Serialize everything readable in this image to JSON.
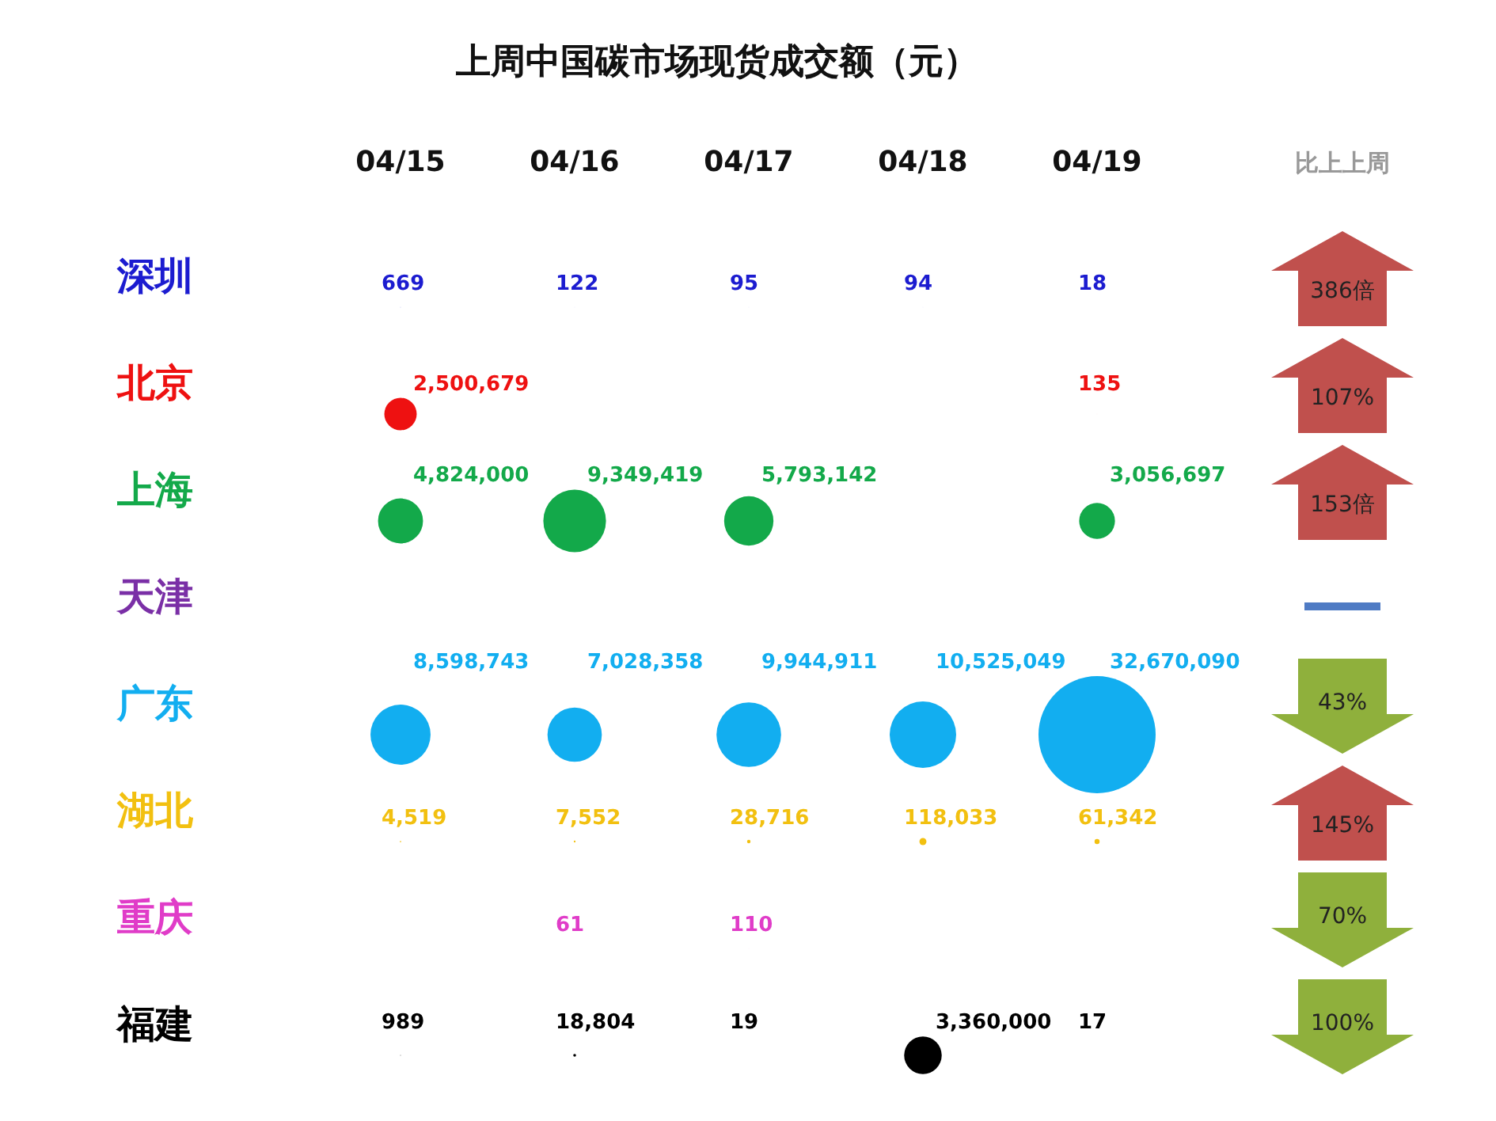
{
  "chart_data": {
    "type": "other",
    "title": "上周中国碳市场现货成交额（元）",
    "categories": [
      "04/15",
      "04/16",
      "04/17",
      "04/18",
      "04/19",
      "比上上周"
    ],
    "series": [
      {
        "name": "深圳",
        "color": "#1c1cd0",
        "values": [
          669,
          122,
          95,
          94,
          18,
          null
        ],
        "value_labels": [
          "669",
          "122",
          "95",
          "94",
          "18",
          null
        ]
      },
      {
        "name": "北京",
        "color": "#ee1111",
        "values": [
          2500679,
          null,
          null,
          null,
          135,
          null
        ],
        "value_labels": [
          "2,500,679",
          null,
          null,
          null,
          "135",
          null
        ]
      },
      {
        "name": "上海",
        "color": "#13a94a",
        "values": [
          4824000,
          9349419,
          5793142,
          null,
          3056697,
          null
        ],
        "value_labels": [
          "4,824,000",
          "9,349,419",
          "5,793,142",
          null,
          "3,056,697",
          null
        ]
      },
      {
        "name": "天津",
        "color": "#7a2fa6",
        "values": [
          null,
          null,
          null,
          null,
          null,
          null
        ]
      },
      {
        "name": "广东",
        "color": "#12aef0",
        "values": [
          8598743,
          7028358,
          9944911,
          10525049,
          32670090,
          null
        ],
        "value_labels": [
          "8,598,743",
          "7,028,358",
          "9,944,911",
          "10,525,049",
          "32,670,090",
          null
        ]
      },
      {
        "name": "湖北",
        "color": "#f2c010",
        "values": [
          4519,
          7552,
          28716,
          118033,
          61342,
          null
        ],
        "value_labels": [
          "4,519",
          "7,552",
          "28,716",
          "118,033",
          "61,342",
          null
        ]
      },
      {
        "name": "重庆",
        "color": "#e03cc8",
        "values": [
          null,
          61,
          110,
          null,
          null,
          null
        ],
        "value_labels": [
          null,
          "61",
          "110",
          null,
          null,
          null
        ]
      },
      {
        "name": "福建",
        "color": "#000000",
        "values": [
          989,
          18804,
          19,
          3360000,
          17,
          null
        ],
        "value_labels": [
          "989",
          "18,804",
          "19",
          "3,360,000",
          "17",
          null
        ]
      }
    ],
    "cell_labels": [
      [
        null,
        null,
        null,
        null,
        null,
        "386倍"
      ],
      [
        null,
        null,
        null,
        null,
        null,
        "107%"
      ],
      [
        null,
        null,
        null,
        null,
        null,
        "153倍"
      ],
      [
        null,
        null,
        null,
        null,
        null,
        null
      ],
      [
        null,
        null,
        null,
        null,
        null,
        "43%"
      ],
      [
        null,
        null,
        null,
        null,
        null,
        "145%"
      ],
      [
        null,
        null,
        null,
        null,
        null,
        "70%"
      ],
      [
        null,
        null,
        null,
        null,
        null,
        "100%"
      ]
    ],
    "colors": [
      "#c0504d",
      "#c0504d",
      "#c0504d",
      "#4f7bc4",
      "#8fb03c",
      "#c0504d",
      "#8fb03c",
      "#8fb03c"
    ]
  }
}
